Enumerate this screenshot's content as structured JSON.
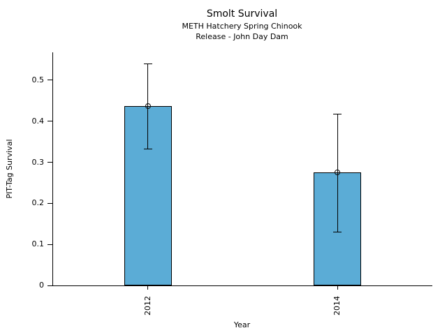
{
  "chart_data": {
    "type": "bar",
    "title": "Smolt Survival",
    "subtitle_line1": "METH Hatchery Spring Chinook",
    "subtitle_line2": "Release - John Day Dam",
    "xlabel": "Year",
    "ylabel": "PIT-Tag Survival",
    "categories": [
      "2012",
      "2014"
    ],
    "values": [
      0.437,
      0.275
    ],
    "error_low": [
      0.333,
      0.13
    ],
    "error_high": [
      0.54,
      0.418
    ],
    "ylim": [
      0,
      0.568
    ],
    "ytick_labels": [
      "0",
      "0.1",
      "0.2",
      "0.3",
      "0.4",
      "0.5"
    ],
    "grid": false,
    "legend": "none",
    "marker": "open-circle",
    "bar_color": "#5BACD6",
    "edge_color": "#000000",
    "error_color": "#000000"
  }
}
